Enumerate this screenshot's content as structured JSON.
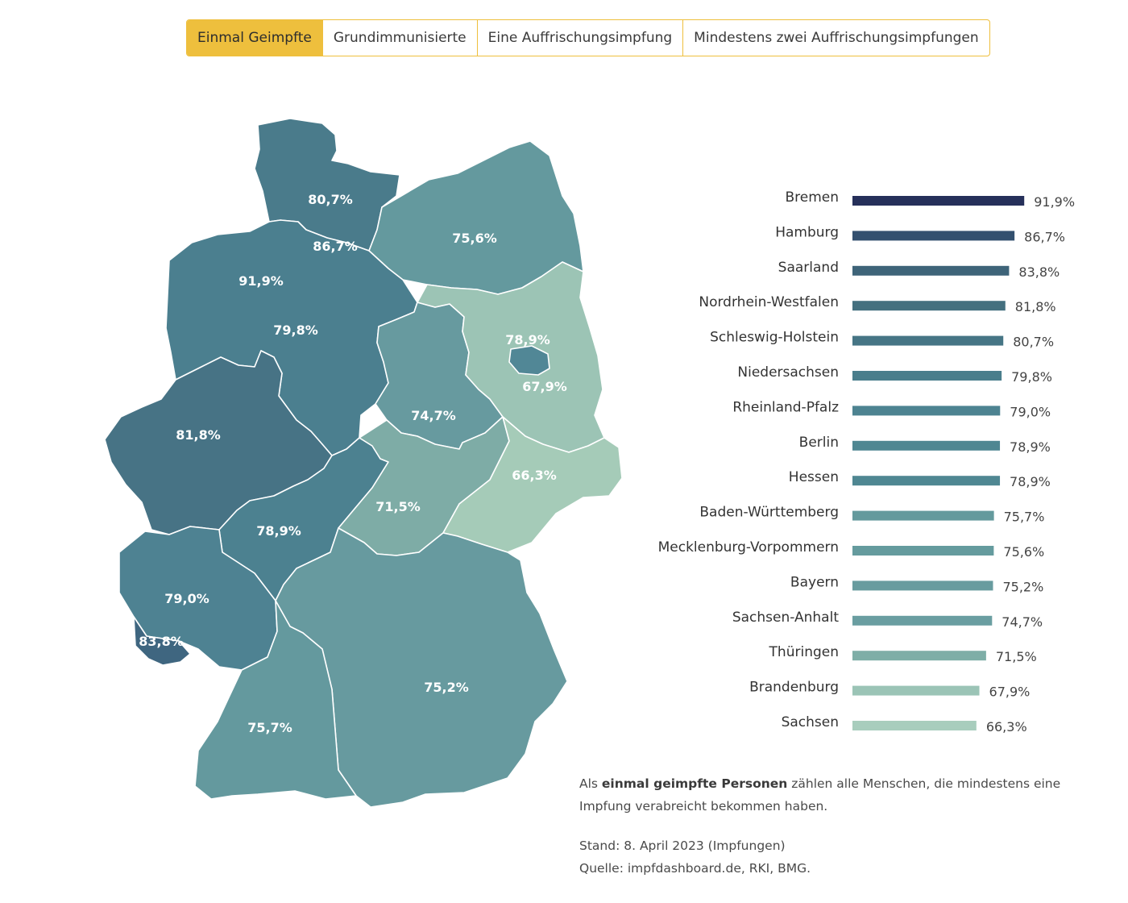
{
  "tabs": [
    {
      "label": "Einmal Geimpfte",
      "active": true
    },
    {
      "label": "Grundimmunisierte",
      "active": false
    },
    {
      "label": "Eine Auffrischungsimpfung",
      "active": false
    },
    {
      "label": "Mindestens zwei Auffrischungsimpfungen",
      "active": false
    }
  ],
  "chart_data": [
    {
      "type": "choropleth-map",
      "regions": [
        {
          "name": "Schleswig-Holstein",
          "label": "80,7%",
          "value": 80.7,
          "color": "#4a7b8b"
        },
        {
          "name": "Hamburg",
          "label": "86,7%",
          "value": 86.7,
          "color": "#3c5e7b"
        },
        {
          "name": "Bremen",
          "label": "91,9%",
          "value": 91.9,
          "color": "#2b3860"
        },
        {
          "name": "Mecklenburg-Vorpommern",
          "label": "75,6%",
          "value": 75.6,
          "color": "#64999e"
        },
        {
          "name": "Niedersachsen",
          "label": "79,8%",
          "value": 79.8,
          "color": "#4b7f8f"
        },
        {
          "name": "Berlin",
          "label": "78,9%",
          "value": 78.9,
          "color": "#518796"
        },
        {
          "name": "Brandenburg",
          "label": "67,9%",
          "value": 67.9,
          "color": "#9cc4b5"
        },
        {
          "name": "Sachsen-Anhalt",
          "label": "74,7%",
          "value": 74.7,
          "color": "#679a9f"
        },
        {
          "name": "Nordrhein-Westfalen",
          "label": "81,8%",
          "value": 81.8,
          "color": "#477385"
        },
        {
          "name": "Hessen",
          "label": "78,9%",
          "value": 78.9,
          "color": "#4c8190"
        },
        {
          "name": "Thüringen",
          "label": "71,5%",
          "value": 71.5,
          "color": "#7eaca6"
        },
        {
          "name": "Sachsen",
          "label": "66,3%",
          "value": 66.3,
          "color": "#a5cbb8"
        },
        {
          "name": "Rheinland-Pfalz",
          "label": "79,0%",
          "value": 79.0,
          "color": "#4e8292"
        },
        {
          "name": "Saarland",
          "label": "83,8%",
          "value": 83.8,
          "color": "#3f6680"
        },
        {
          "name": "Bayern",
          "label": "75,2%",
          "value": 75.2,
          "color": "#679a9f"
        },
        {
          "name": "Baden-Württemberg",
          "label": "75,7%",
          "value": 75.7,
          "color": "#64999e"
        }
      ]
    },
    {
      "type": "bar",
      "orientation": "horizontal",
      "categories": [
        "Bremen",
        "Hamburg",
        "Saarland",
        "Nordrhein-Westfalen",
        "Schleswig-Holstein",
        "Niedersachsen",
        "Rheinland-Pfalz",
        "Berlin",
        "Hessen",
        "Baden-Württemberg",
        "Mecklenburg-Vorpommern",
        "Bayern",
        "Sachsen-Anhalt",
        "Thüringen",
        "Brandenburg",
        "Sachsen"
      ],
      "values": [
        91.9,
        86.7,
        83.8,
        81.8,
        80.7,
        79.8,
        79.0,
        78.9,
        78.9,
        75.7,
        75.6,
        75.2,
        74.7,
        71.5,
        67.9,
        66.3
      ],
      "labels": [
        "91,9%",
        "86,7%",
        "83,8%",
        "81,8%",
        "80,7%",
        "79,8%",
        "79,0%",
        "78,9%",
        "78,9%",
        "75,7%",
        "75,6%",
        "75,2%",
        "74,7%",
        "71,5%",
        "67,9%",
        "66,3%"
      ],
      "colors": [
        "#26305a",
        "#33506f",
        "#3e6479",
        "#44707f",
        "#467585",
        "#4a7e8c",
        "#4d8391",
        "#4f8792",
        "#4f8792",
        "#649a9d",
        "#659b9e",
        "#689c9f",
        "#6a9ea1",
        "#7eaea7",
        "#9bc4b6",
        "#a8cdbd"
      ],
      "xlim": [
        0,
        100
      ]
    }
  ],
  "note": {
    "prefix": "Als ",
    "bold": "einmal geimpfte Personen",
    "rest_line1": " zählen alle Menschen, die mindestens eine",
    "line2": "Impfung verabreicht bekommen haben.",
    "stand": "Stand: 8. April 2023 (Impfungen)",
    "quelle": "Quelle: impfdashboard.de, RKI, BMG."
  }
}
